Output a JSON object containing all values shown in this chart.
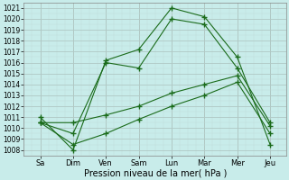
{
  "x_labels": [
    "Sa",
    "Dim",
    "Ven",
    "Sam",
    "Lun",
    "Mar",
    "Mer",
    "Jeu"
  ],
  "x_positions": [
    0,
    1,
    2,
    3,
    4,
    5,
    6,
    7
  ],
  "line_volatile1": [
    1010.5,
    1009.5,
    1016.0,
    1015.5,
    1020.0,
    1019.5,
    1015.5,
    1010.5
  ],
  "line_volatile2": [
    1011.0,
    1008.0,
    1016.2,
    1017.2,
    1021.0,
    1020.2,
    1016.5,
    1008.5
  ],
  "line_smooth1": [
    1010.5,
    1010.5,
    1011.2,
    1012.0,
    1013.2,
    1014.0,
    1014.8,
    1010.2
  ],
  "line_smooth2": [
    1010.5,
    1008.5,
    1009.5,
    1010.8,
    1012.0,
    1013.0,
    1014.2,
    1009.5
  ],
  "ylim": [
    1007.5,
    1021.5
  ],
  "yticks": [
    1008,
    1009,
    1010,
    1011,
    1012,
    1013,
    1014,
    1015,
    1016,
    1017,
    1018,
    1019,
    1020,
    1021
  ],
  "line_color": "#1a6b1a",
  "bg_color": "#c8ecea",
  "grid_color_major": "#b0c8c4",
  "grid_color_minor": "#c0dcd8",
  "xlabel": "Pression niveau de la mer( hPa )",
  "marker": "+",
  "marker_size": 4,
  "linewidth": 0.8
}
